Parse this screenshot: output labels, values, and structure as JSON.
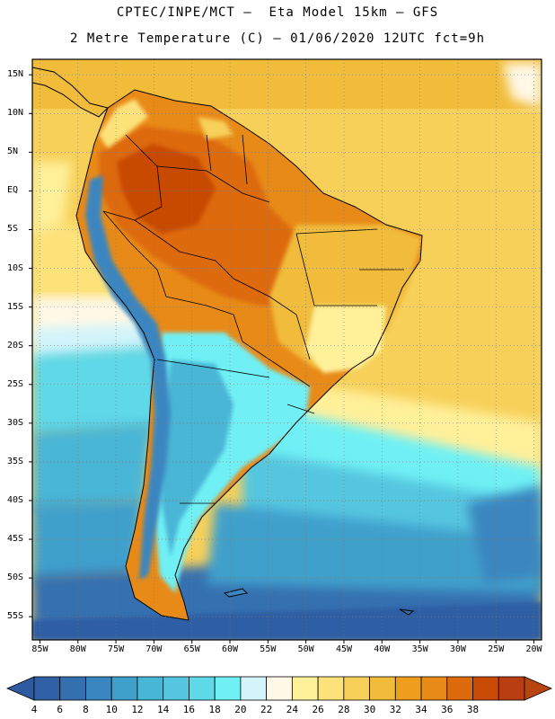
{
  "header": {
    "line1": "CPTEC/INPE/MCT –  Eta Model 15km – GFS",
    "line2": "2 Metre Temperature (C) – 01/06/2020 12UTC fct=9h"
  },
  "map": {
    "region": "South America",
    "variable": "2 Metre Temperature",
    "units": "C",
    "lat_labels": [
      "15N",
      "10N",
      "5N",
      "EQ",
      "5S",
      "10S",
      "15S",
      "20S",
      "25S",
      "30S",
      "35S",
      "40S",
      "45S",
      "50S",
      "55S"
    ],
    "lat_values": [
      15,
      10,
      5,
      0,
      -5,
      -10,
      -15,
      -20,
      -25,
      -30,
      -35,
      -40,
      -45,
      -50,
      -55
    ],
    "lon_labels": [
      "85W",
      "80W",
      "75W",
      "70W",
      "65W",
      "60W",
      "55W",
      "50W",
      "45W",
      "40W",
      "35W",
      "30W",
      "25W",
      "20W"
    ],
    "lon_values": [
      -85,
      -80,
      -75,
      -70,
      -65,
      -60,
      -55,
      -50,
      -45,
      -40,
      -35,
      -30,
      -25,
      -20
    ],
    "lat_range": [
      -58,
      17
    ],
    "lon_range": [
      -86,
      -19
    ]
  },
  "colorbar": {
    "labels": [
      "4",
      "6",
      "8",
      "10",
      "12",
      "14",
      "16",
      "18",
      "20",
      "22",
      "24",
      "26",
      "28",
      "30",
      "32",
      "34",
      "36",
      "38"
    ],
    "colors": [
      "#2f5fa4",
      "#3470b0",
      "#3a86c0",
      "#40a0cc",
      "#48b6d6",
      "#55c6e0",
      "#5fd8e8",
      "#6ff0f4",
      "#d2f4fa",
      "#fff8e6",
      "#fff09a",
      "#fde27a",
      "#f7d05a",
      "#f1bc3a",
      "#ee9d1c",
      "#e88a18",
      "#dd6a0c",
      "#c84a05",
      "#b83d10"
    ],
    "low_arrow_color": "#2d5aa0",
    "high_arrow_color": "#b84410"
  },
  "colors": {
    "ocean_north": "#f7d05a",
    "ocean_tropical_south": "#fde27a",
    "land_hot": "#dd6a0c"
  }
}
